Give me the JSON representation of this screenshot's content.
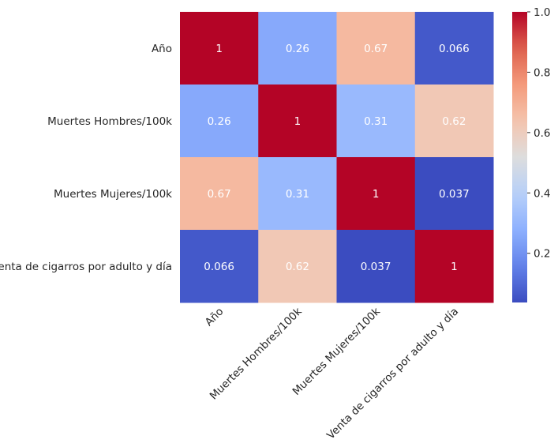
{
  "chart_data": {
    "type": "heatmap",
    "title": "",
    "xlabel": "",
    "ylabel": "",
    "row_labels": [
      "Año",
      "Muertes Hombres/100k",
      "Muertes Mujeres/100k",
      "Venta de cigarros por adulto y día"
    ],
    "col_labels": [
      "Año",
      "Muertes Hombres/100k",
      "Muertes Mujeres/100k",
      "Venta de cigarros por adulto y día"
    ],
    "values": [
      [
        1,
        0.26,
        0.67,
        0.066
      ],
      [
        0.26,
        1,
        0.31,
        0.62
      ],
      [
        0.67,
        0.31,
        1,
        0.037
      ],
      [
        0.066,
        0.62,
        0.037,
        1
      ]
    ],
    "annotations": [
      [
        "1",
        "0.26",
        "0.67",
        "0.066"
      ],
      [
        "0.26",
        "1",
        "0.31",
        "0.62"
      ],
      [
        "0.67",
        "0.31",
        "1",
        "0.037"
      ],
      [
        "0.066",
        "0.62",
        "0.037",
        "1"
      ]
    ],
    "colormap": "coolwarm",
    "vmin": 0.037,
    "vmax": 1.0,
    "colorbar_ticks": [
      "0.2",
      "0.4",
      "0.6",
      "0.8",
      "1.0"
    ],
    "colorbar_tick_values": [
      0.2,
      0.4,
      0.6,
      0.8,
      1.0
    ],
    "grid": false,
    "legend": "colorbar-right",
    "x_tick_rotation_deg": 45
  }
}
